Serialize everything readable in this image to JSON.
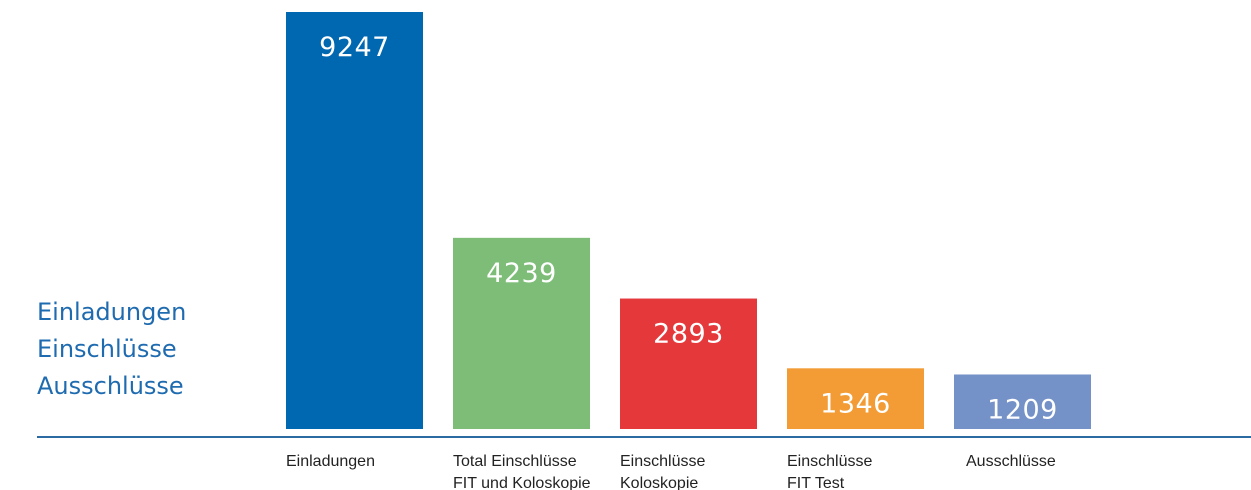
{
  "title_lines": [
    "Einladungen",
    "Einschlüsse",
    "Ausschlüsse"
  ],
  "colors": {
    "title": "#1f6bb0",
    "baseline": "#2b6aa3"
  },
  "chart_data": {
    "type": "bar",
    "title": "",
    "xlabel": "",
    "ylabel": "",
    "ylim": [
      0,
      9247
    ],
    "grid": false,
    "categories": [
      [
        "Einladungen"
      ],
      [
        "Total Einschlüsse",
        "FIT und Koloskopie"
      ],
      [
        "Einschlüsse",
        "Koloskopie"
      ],
      [
        "Einschlüsse",
        "FIT Test"
      ],
      [
        "Ausschlüsse"
      ]
    ],
    "values": [
      9247,
      4239,
      2893,
      1346,
      1209
    ],
    "value_labels": [
      "9247",
      "4239",
      "2893",
      "1346",
      "1209"
    ],
    "bar_colors": [
      "#0068b0",
      "#7dbd78",
      "#e4383b",
      "#f39c35",
      "#7592c8"
    ]
  }
}
